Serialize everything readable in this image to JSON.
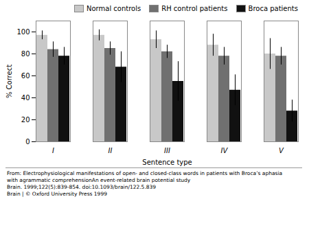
{
  "chart_data": {
    "type": "bar",
    "categories": [
      "I",
      "II",
      "III",
      "IV",
      "V"
    ],
    "series": [
      {
        "name": "Normal controls",
        "color": "#c8c8c8",
        "values": [
          97,
          97,
          93,
          88,
          80
        ],
        "errors": [
          4,
          5,
          8,
          10,
          14
        ]
      },
      {
        "name": "RH control patients",
        "color": "#707070",
        "values": [
          84,
          85,
          82,
          78,
          78
        ],
        "errors": [
          7,
          6,
          6,
          8,
          8
        ]
      },
      {
        "name": "Broca patients",
        "color": "#111111",
        "values": [
          78,
          68,
          55,
          47,
          28
        ],
        "errors": [
          8,
          14,
          18,
          14,
          10
        ]
      }
    ],
    "xlabel": "Sentence type",
    "ylabel": "% Correct",
    "ylim": [
      0,
      110
    ],
    "yticks": [
      0,
      20,
      40,
      60,
      80,
      100
    ],
    "grid": false,
    "legend": "upper right",
    "caption": [
      "From: Electrophysiological manifestations of open- and closed-class words in patients with Broca’s aphasia",
      "with agrammatic comprehensionAn event-related brain potential study",
      "Brain. 1999;122(5):839-854. doi:10.1093/brain/122.5.839",
      "Brain | © Oxford University Press 1999"
    ]
  }
}
